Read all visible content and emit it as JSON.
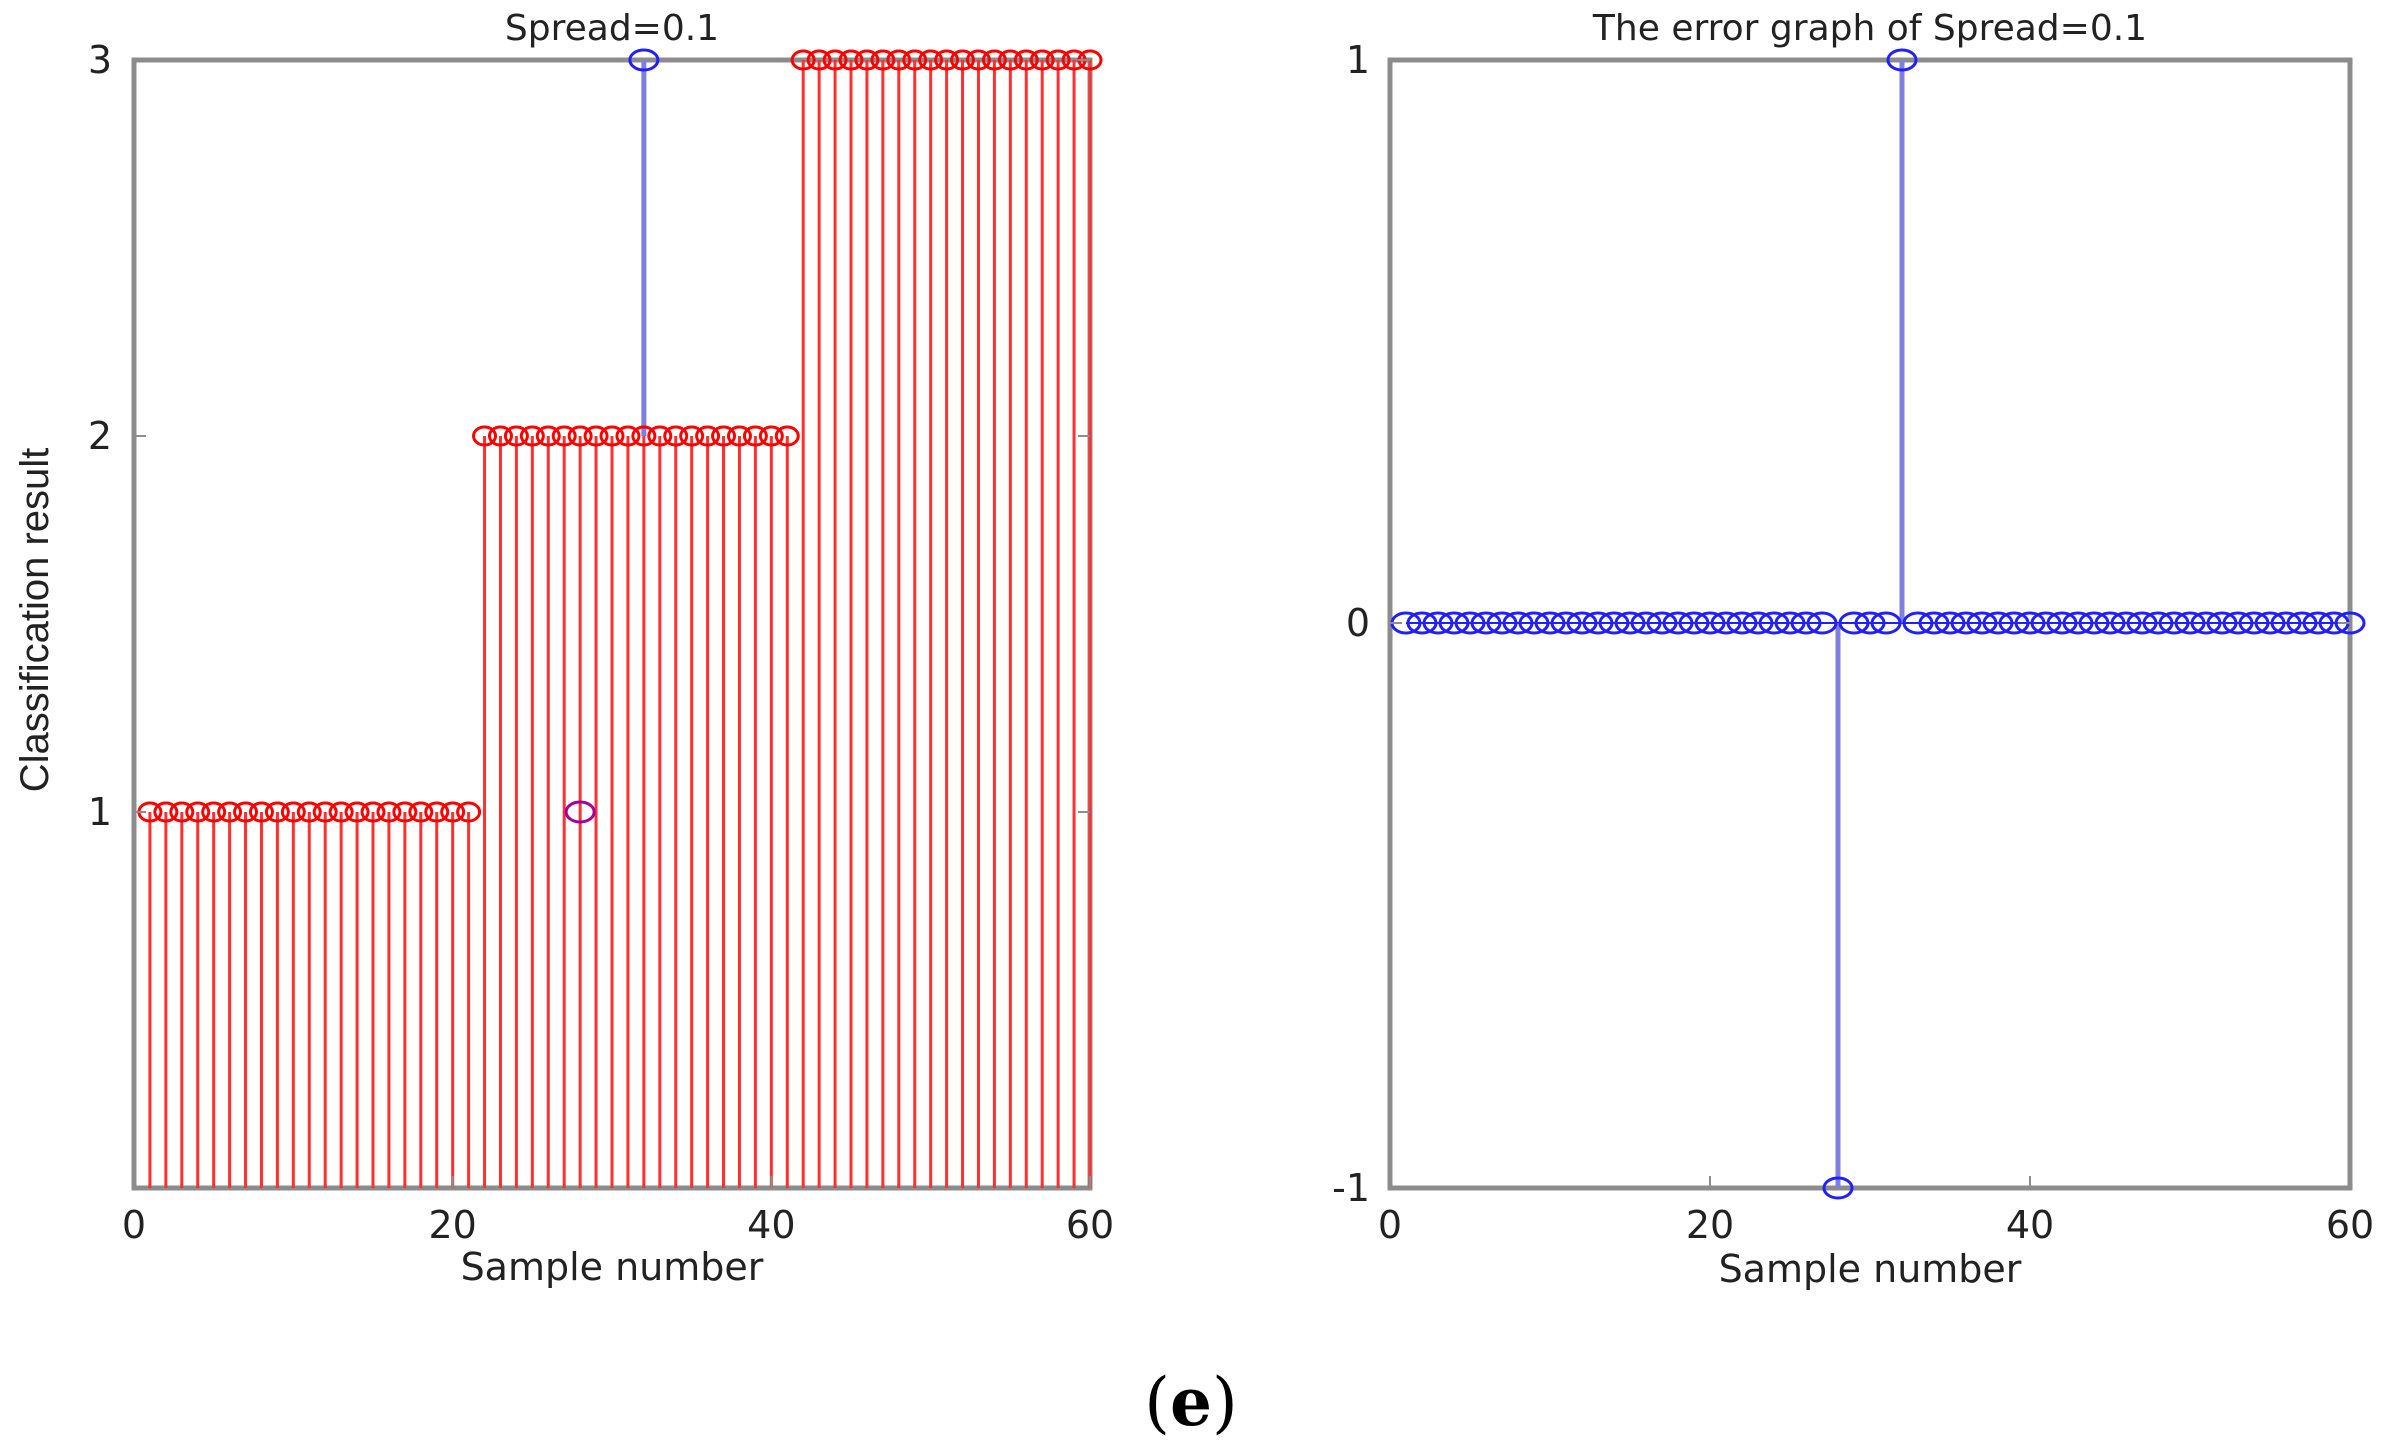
{
  "caption": {
    "open": "(",
    "letter": "e",
    "close": ")"
  },
  "colors": {
    "frame": "#8c8c8c",
    "stem_red": "#ff3030",
    "stem_blue": "#7f7fe0",
    "marker_red": "#ff0000",
    "marker_blue": "#2020ff",
    "marker_outlier": "#a0009c"
  },
  "chart_data": [
    {
      "type": "stem",
      "title": "Spread=0.1",
      "xlabel": "Sample number",
      "ylabel": "Classification result",
      "xlim": [
        0,
        60
      ],
      "ylim": [
        0,
        3
      ],
      "xticks": [
        0,
        20,
        40,
        60
      ],
      "xtick_labels": [
        "0",
        "20",
        "40",
        "60"
      ],
      "yticks": [
        1,
        2,
        3
      ],
      "ytick_labels": [
        "1",
        "2",
        "3"
      ],
      "grid": false,
      "series": [
        {
          "role": "actual",
          "marker": "o",
          "x": [
            1,
            2,
            3,
            4,
            5,
            6,
            7,
            8,
            9,
            10,
            11,
            12,
            13,
            14,
            15,
            16,
            17,
            18,
            19,
            20,
            21,
            22,
            23,
            24,
            25,
            26,
            27,
            28,
            29,
            30,
            31,
            32,
            33,
            34,
            35,
            36,
            37,
            38,
            39,
            40,
            41,
            42,
            43,
            44,
            45,
            46,
            47,
            48,
            49,
            50,
            51,
            52,
            53,
            54,
            55,
            56,
            57,
            58,
            59,
            60
          ],
          "values": [
            1,
            1,
            1,
            1,
            1,
            1,
            1,
            1,
            1,
            1,
            1,
            1,
            1,
            1,
            1,
            1,
            1,
            1,
            1,
            1,
            1,
            2,
            2,
            2,
            2,
            2,
            2,
            2,
            2,
            2,
            2,
            2,
            2,
            2,
            2,
            2,
            2,
            2,
            2,
            2,
            2,
            3,
            3,
            3,
            3,
            3,
            3,
            3,
            3,
            3,
            3,
            3,
            3,
            3,
            3,
            3,
            3,
            3,
            3,
            3
          ]
        },
        {
          "role": "predicted",
          "marker": "o",
          "x": [
            1,
            2,
            3,
            4,
            5,
            6,
            7,
            8,
            9,
            10,
            11,
            12,
            13,
            14,
            15,
            16,
            17,
            18,
            19,
            20,
            21,
            22,
            23,
            24,
            25,
            26,
            27,
            28,
            29,
            30,
            31,
            32,
            33,
            34,
            35,
            36,
            37,
            38,
            39,
            40,
            41,
            42,
            43,
            44,
            45,
            46,
            47,
            48,
            49,
            50,
            51,
            52,
            53,
            54,
            55,
            56,
            57,
            58,
            59,
            60
          ],
          "values": [
            1,
            1,
            1,
            1,
            1,
            1,
            1,
            1,
            1,
            1,
            1,
            1,
            1,
            1,
            1,
            1,
            1,
            1,
            1,
            1,
            1,
            2,
            2,
            2,
            2,
            2,
            2,
            1,
            2,
            2,
            2,
            3,
            2,
            2,
            2,
            2,
            2,
            2,
            2,
            2,
            2,
            3,
            3,
            3,
            3,
            3,
            3,
            3,
            3,
            3,
            3,
            3,
            3,
            3,
            3,
            3,
            3,
            3,
            3,
            3
          ]
        }
      ]
    },
    {
      "type": "stem",
      "title": "The error graph of Spread=0.1",
      "xlabel": "Sample number",
      "ylabel": "",
      "xlim": [
        0,
        60
      ],
      "ylim": [
        -1,
        1
      ],
      "xticks": [
        0,
        20,
        40,
        60
      ],
      "xtick_labels": [
        "0",
        "20",
        "40",
        "60"
      ],
      "yticks": [
        -1,
        0,
        1
      ],
      "ytick_labels": [
        "-1",
        "0",
        "1"
      ],
      "grid": false,
      "series": [
        {
          "role": "error",
          "marker": "o",
          "x": [
            1,
            2,
            3,
            4,
            5,
            6,
            7,
            8,
            9,
            10,
            11,
            12,
            13,
            14,
            15,
            16,
            17,
            18,
            19,
            20,
            21,
            22,
            23,
            24,
            25,
            26,
            27,
            28,
            29,
            30,
            31,
            32,
            33,
            34,
            35,
            36,
            37,
            38,
            39,
            40,
            41,
            42,
            43,
            44,
            45,
            46,
            47,
            48,
            49,
            50,
            51,
            52,
            53,
            54,
            55,
            56,
            57,
            58,
            59,
            60
          ],
          "values": [
            0,
            0,
            0,
            0,
            0,
            0,
            0,
            0,
            0,
            0,
            0,
            0,
            0,
            0,
            0,
            0,
            0,
            0,
            0,
            0,
            0,
            0,
            0,
            0,
            0,
            0,
            0,
            -1,
            0,
            0,
            0,
            1,
            0,
            0,
            0,
            0,
            0,
            0,
            0,
            0,
            0,
            0,
            0,
            0,
            0,
            0,
            0,
            0,
            0,
            0,
            0,
            0,
            0,
            0,
            0,
            0,
            0,
            0,
            0,
            0
          ]
        }
      ]
    }
  ]
}
